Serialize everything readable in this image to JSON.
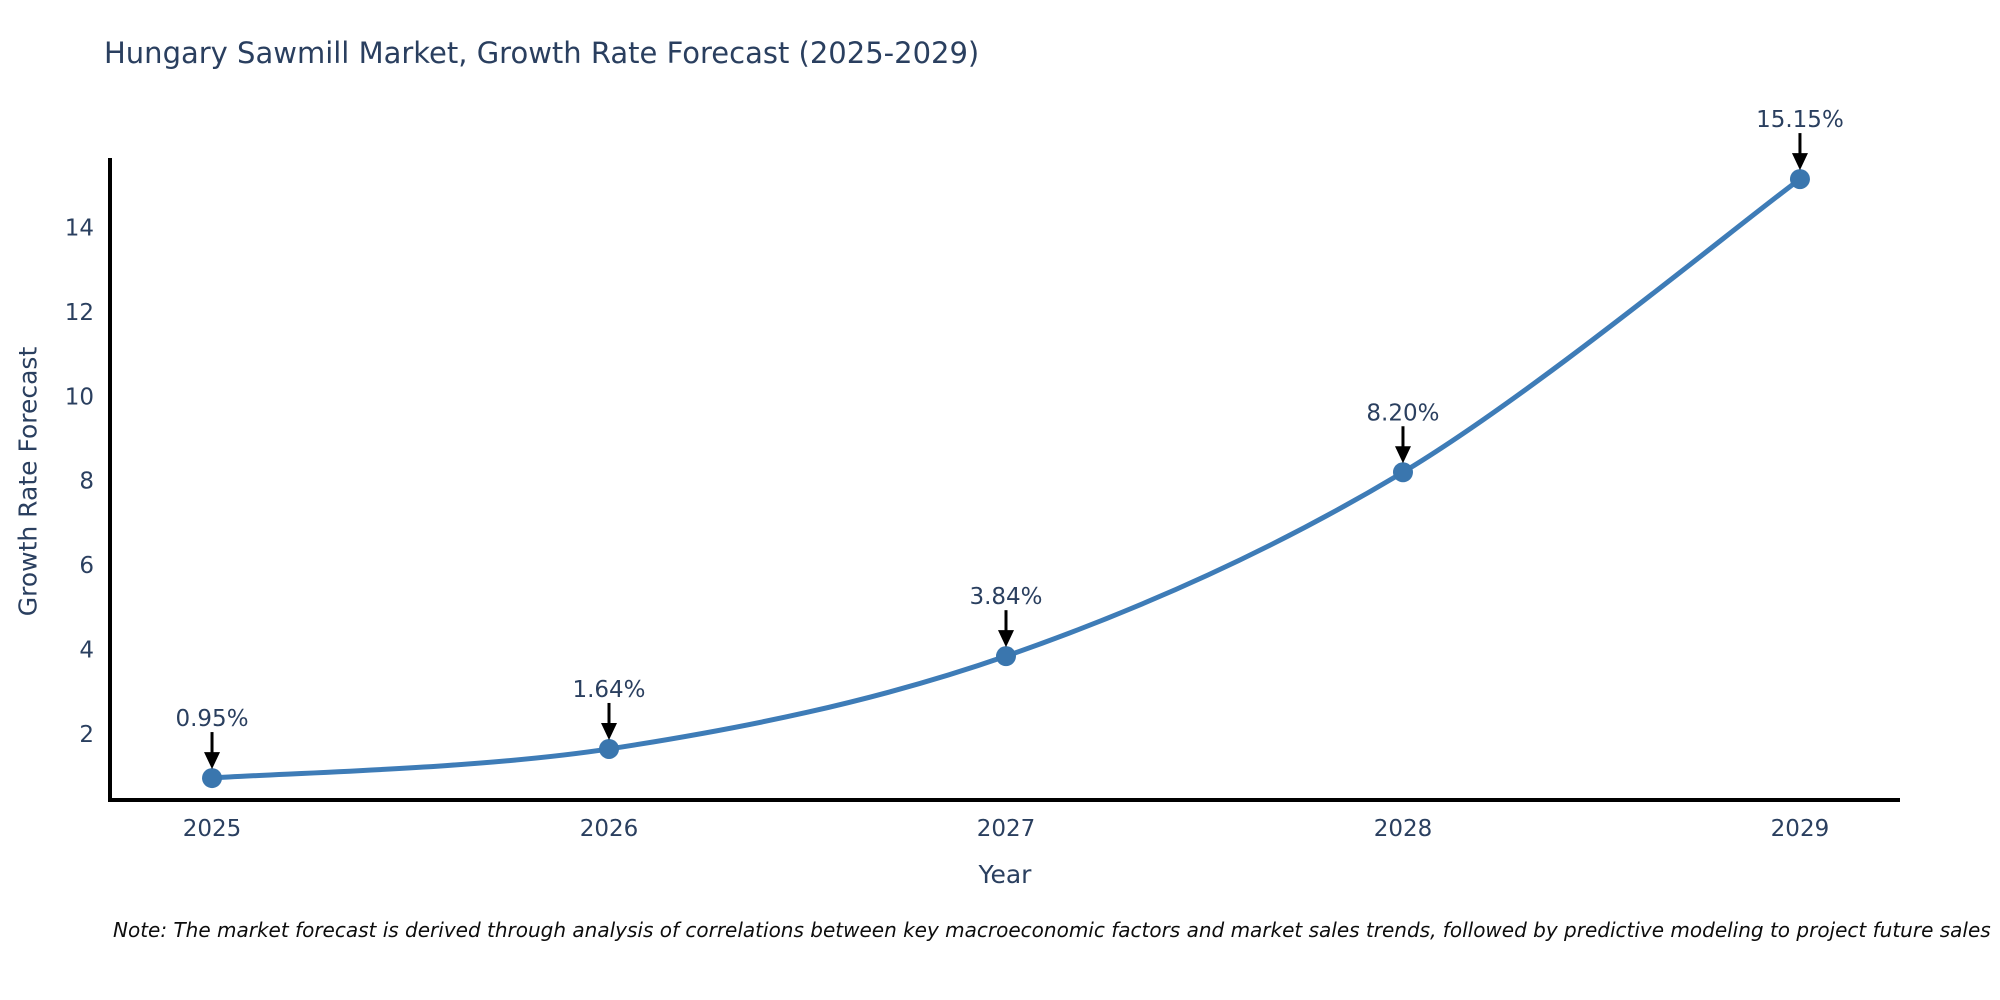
{
  "title": "Hungary Sawmill Market, Growth Rate Forecast (2025-2029)",
  "note": "Note: The market forecast is derived through analysis of correlations between key macroeconomic factors and market sales trends, followed by predictive modeling to project future sales",
  "chart_data": {
    "type": "line",
    "title": "Hungary Sawmill Market, Growth Rate Forecast (2025-2029)",
    "xlabel": "Year",
    "ylabel": "Growth Rate Forecast",
    "x": [
      2025,
      2026,
      2027,
      2028,
      2029
    ],
    "series": [
      {
        "name": "Growth Rate Forecast",
        "values": [
          0.95,
          1.64,
          3.84,
          8.2,
          15.15
        ]
      }
    ],
    "point_labels": [
      "0.95%",
      "1.64%",
      "3.84%",
      "8.20%",
      "15.15%"
    ],
    "x_ticks": [
      "2025",
      "2026",
      "2027",
      "2028",
      "2029"
    ],
    "y_ticks": [
      2,
      4,
      6,
      8,
      10,
      12,
      14
    ],
    "xlim": [
      2024.743,
      2029.252
    ],
    "ylim": [
      0.43,
      15.65
    ],
    "grid": false,
    "legend_position": "none",
    "line_shape": "spline",
    "colors": {
      "line": "#3e7cb7",
      "marker": "#3a76ae",
      "axis": "#000000",
      "tick_text": "#2a3f5f",
      "annotation_text": "#2a3f5f",
      "arrow": "#000000",
      "background": "#ffffff"
    }
  }
}
